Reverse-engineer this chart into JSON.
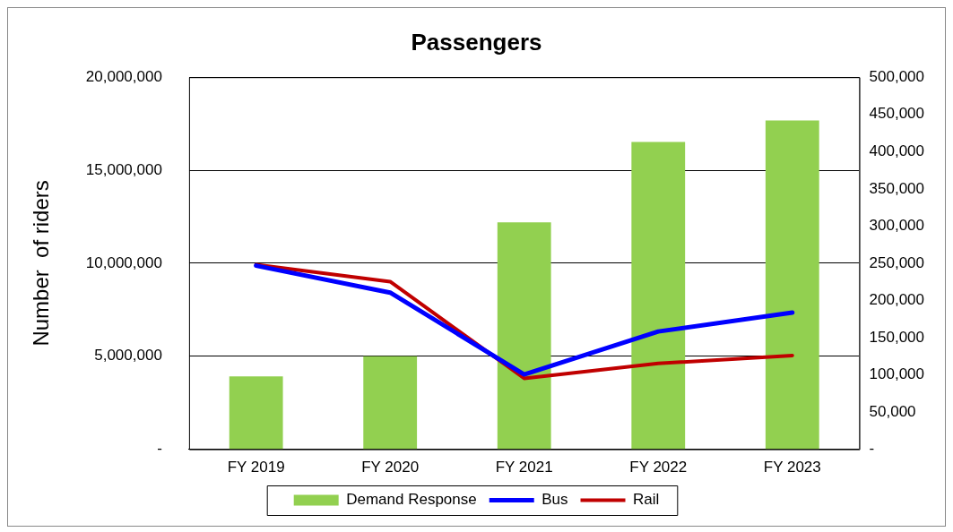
{
  "chart_data": {
    "type": "bar",
    "title": "Passengers",
    "ylabel": "Number  of riders",
    "categories": [
      "FY 2019",
      "FY 2020",
      "FY 2021",
      "FY 2022",
      "FY 2023"
    ],
    "series": [
      {
        "name": "Demand Response",
        "axis": "y2",
        "color": "#92d050",
        "values": [
          98000,
          125000,
          305000,
          413000,
          442000
        ]
      },
      {
        "name": "Bus",
        "type": "line",
        "color": "#0000ff",
        "values": [
          9870000,
          8420000,
          4020000,
          6330000,
          7350000
        ]
      },
      {
        "name": "Rail",
        "type": "line",
        "color": "#c00000",
        "values": [
          9920000,
          9010000,
          3810000,
          4610000,
          5040000
        ]
      }
    ],
    "ylim": [
      0,
      20000000
    ],
    "yticks": [
      {
        "value": 0,
        "label": "-"
      },
      {
        "value": 5000000,
        "label": "5,000,000"
      },
      {
        "value": 10000000,
        "label": "10,000,000"
      },
      {
        "value": 15000000,
        "label": "15,000,000"
      },
      {
        "value": 20000000,
        "label": "20,000,000"
      }
    ],
    "y2lim": [
      0,
      500000
    ],
    "y2ticks": [
      {
        "value": 0,
        "label": "-"
      },
      {
        "value": 50000,
        "label": "50,000"
      },
      {
        "value": 100000,
        "label": "100,000"
      },
      {
        "value": 150000,
        "label": "150,000"
      },
      {
        "value": 200000,
        "label": "200,000"
      },
      {
        "value": 250000,
        "label": "250,000"
      },
      {
        "value": 300000,
        "label": "300,000"
      },
      {
        "value": 350000,
        "label": "350,000"
      },
      {
        "value": 400000,
        "label": "400,000"
      },
      {
        "value": 450000,
        "label": "450,000"
      },
      {
        "value": 500000,
        "label": "500,000"
      }
    ],
    "grid": "y",
    "legend": "bottom",
    "marker": "none",
    "line_style": "solid"
  }
}
